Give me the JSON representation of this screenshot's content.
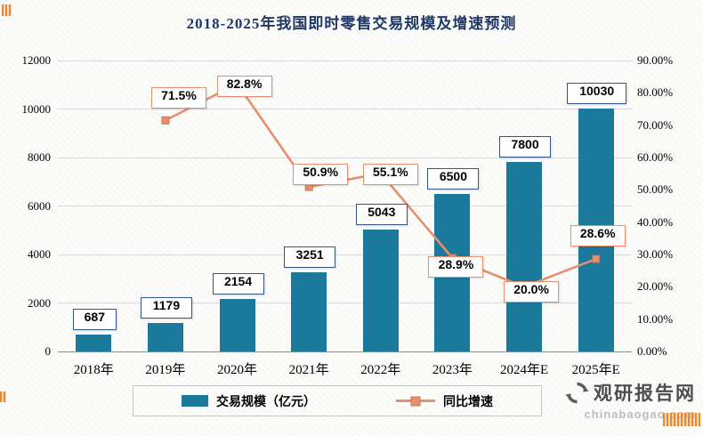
{
  "title": "2018-2025年我国即时零售交易规模及增速预测",
  "chart_data": {
    "type": "bar",
    "subtype": "bar+line combo, dual axis",
    "categories": [
      "2018年",
      "2019年",
      "2020年",
      "2021年",
      "2022年",
      "2023年",
      "2024年E",
      "2025年E"
    ],
    "series": [
      {
        "name": "交易规模（亿元）",
        "type": "bar",
        "axis": "left",
        "color": "#1b7a9c",
        "values": [
          687,
          1179,
          2154,
          3251,
          5043,
          6500,
          7800,
          10030
        ]
      },
      {
        "name": "同比增速",
        "type": "line",
        "axis": "right",
        "color": "#e78e6c",
        "unit": "%",
        "values": [
          null,
          71.5,
          82.8,
          50.9,
          55.1,
          28.9,
          20.0,
          28.6
        ]
      }
    ],
    "bar_labels": [
      "687",
      "1179",
      "2154",
      "3251",
      "5043",
      "6500",
      "7800",
      "10030"
    ],
    "line_labels": [
      "71.5%",
      "82.8%",
      "50.9%",
      "55.1%",
      "28.9%",
      "20.0%",
      "28.6%"
    ],
    "left_axis": {
      "min": 0,
      "max": 12000,
      "step": 2000,
      "ticks": [
        "0",
        "2000",
        "4000",
        "6000",
        "8000",
        "10000",
        "12000"
      ]
    },
    "right_axis": {
      "min": 0,
      "max": 90,
      "step": 10,
      "ticks": [
        "0.00%",
        "10.00%",
        "20.00%",
        "30.00%",
        "40.00%",
        "50.00%",
        "60.00%",
        "70.00%",
        "80.00%",
        "90.00%"
      ]
    },
    "grid": true,
    "legend_position": "bottom"
  },
  "legend": {
    "items": [
      {
        "label": "交易规模（亿元）",
        "type": "bar",
        "color": "#1b7a9c"
      },
      {
        "label": "同比增速",
        "type": "line",
        "color": "#e78e6c"
      }
    ]
  },
  "watermark": {
    "brand": "观研报告网",
    "domain": "chinabaogao.com",
    "logo": "circular-arrows-icon"
  },
  "colors": {
    "title": "#1f3864",
    "bar": "#1b7a9c",
    "line": "#e78e6c",
    "bar_label_border": "#33568c",
    "line_label_border": "#e78e6c",
    "gridline": "#d8d8d8",
    "axis_line": "#8c8c8c"
  }
}
